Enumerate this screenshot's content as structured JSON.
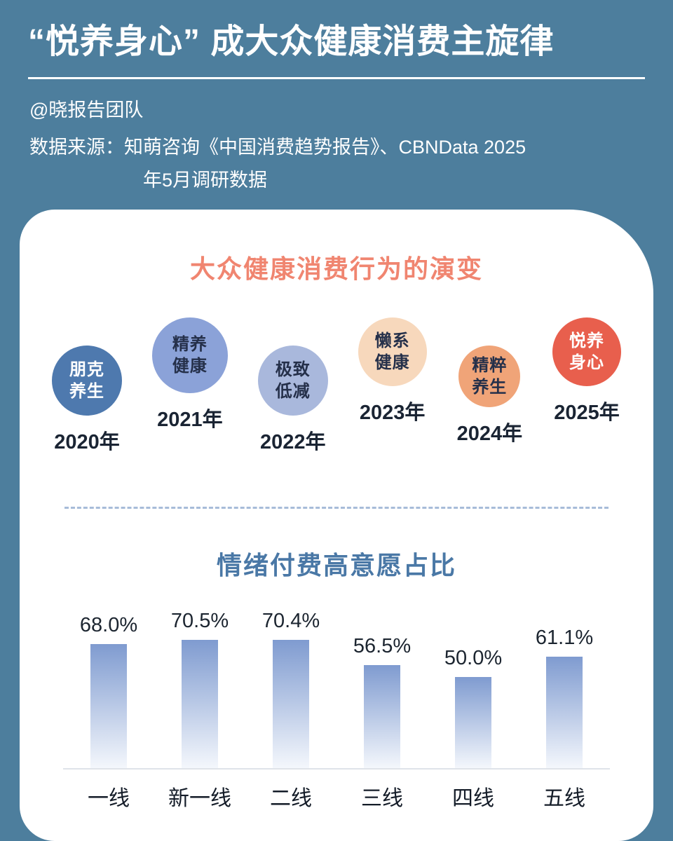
{
  "header": {
    "title": "“悦养身心” 成大众健康消费主旋律",
    "byline": "@晓报告团队",
    "source_line1": "数据来源：知萌咨询《中国消费趋势报告》、CBNData 2025",
    "source_line2": "年5月调研数据"
  },
  "colors": {
    "page_background": "#4d7e9d",
    "card_background": "#ffffff",
    "evolution_title": "#f08570",
    "chart_title": "#4a78a6",
    "dashed_divider": "#a7bcd9"
  },
  "evolution": {
    "title": "大众健康消费行为的演变",
    "items": [
      {
        "line1": "朋克",
        "line2": "养生",
        "year": "2020年",
        "bg": "#4e79ae",
        "fg": "#ffffff",
        "size": 100,
        "pos": "low"
      },
      {
        "line1": "精养",
        "line2": "健康",
        "year": "2021年",
        "bg": "#8ba2d8",
        "fg": "#25304a",
        "size": 108,
        "pos": "high"
      },
      {
        "line1": "极致",
        "line2": "低减",
        "year": "2022年",
        "bg": "#a9b8dc",
        "fg": "#25304a",
        "size": 100,
        "pos": "low"
      },
      {
        "line1": "懒系",
        "line2": "健康",
        "year": "2023年",
        "bg": "#f7d8bc",
        "fg": "#25304a",
        "size": 98,
        "pos": "high"
      },
      {
        "line1": "精粹",
        "line2": "养生",
        "year": "2024年",
        "bg": "#f0a478",
        "fg": "#25304a",
        "size": 88,
        "pos": "low"
      },
      {
        "line1": "悦养",
        "line2": "身心",
        "year": "2025年",
        "bg": "#e85f4d",
        "fg": "#ffffff",
        "size": 98,
        "pos": "high"
      }
    ]
  },
  "chart_data": {
    "type": "bar",
    "title": "情绪付费高意愿占比",
    "categories": [
      "一线",
      "新一线",
      "二线",
      "三线",
      "四线",
      "五线"
    ],
    "values": [
      68.0,
      70.5,
      70.4,
      56.5,
      50.0,
      61.1
    ],
    "value_labels": [
      "68.0%",
      "70.5%",
      "70.4%",
      "56.5%",
      "50.0%",
      "61.1%"
    ],
    "ylabel": "",
    "xlabel": "",
    "ylim": [
      0,
      80
    ],
    "grid": false,
    "legend": false,
    "bar_color_top": "#7f9bd0",
    "bar_color_bottom": "#f4f7fc"
  }
}
